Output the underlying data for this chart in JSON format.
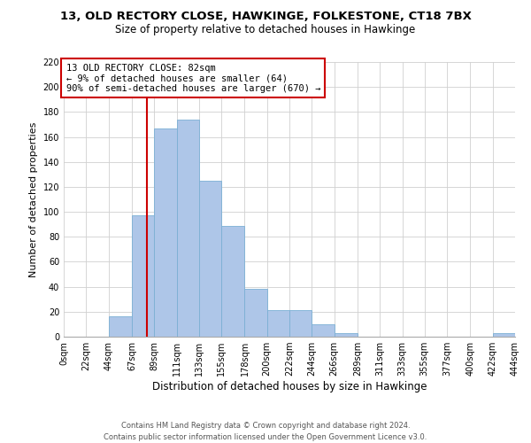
{
  "title": "13, OLD RECTORY CLOSE, HAWKINGE, FOLKESTONE, CT18 7BX",
  "subtitle": "Size of property relative to detached houses in Hawkinge",
  "xlabel": "Distribution of detached houses by size in Hawkinge",
  "ylabel": "Number of detached properties",
  "bar_left_edges": [
    0,
    22,
    44,
    67,
    89,
    111,
    133,
    155,
    178,
    200,
    222,
    244,
    266,
    289,
    311,
    333,
    355,
    377,
    400,
    422
  ],
  "bar_heights": [
    0,
    0,
    16,
    97,
    167,
    174,
    125,
    89,
    38,
    21,
    21,
    10,
    3,
    0,
    0,
    0,
    0,
    0,
    0,
    3
  ],
  "bar_widths": [
    22,
    22,
    23,
    22,
    22,
    22,
    22,
    23,
    22,
    22,
    22,
    22,
    23,
    22,
    22,
    22,
    22,
    23,
    22,
    22
  ],
  "bar_color": "#aec6e8",
  "bar_edge_color": "#7bafd4",
  "property_line_x": 82,
  "vline_color": "#cc0000",
  "ylim": [
    0,
    220
  ],
  "yticks": [
    0,
    20,
    40,
    60,
    80,
    100,
    120,
    140,
    160,
    180,
    200,
    220
  ],
  "xtick_labels": [
    "0sqm",
    "22sqm",
    "44sqm",
    "67sqm",
    "89sqm",
    "111sqm",
    "133sqm",
    "155sqm",
    "178sqm",
    "200sqm",
    "222sqm",
    "244sqm",
    "266sqm",
    "289sqm",
    "311sqm",
    "333sqm",
    "355sqm",
    "377sqm",
    "400sqm",
    "422sqm",
    "444sqm"
  ],
  "xtick_positions": [
    0,
    22,
    44,
    67,
    89,
    111,
    133,
    155,
    178,
    200,
    222,
    244,
    266,
    289,
    311,
    333,
    355,
    377,
    400,
    422,
    444
  ],
  "annotation_title": "13 OLD RECTORY CLOSE: 82sqm",
  "annotation_line1": "← 9% of detached houses are smaller (64)",
  "annotation_line2": "90% of semi-detached houses are larger (670) →",
  "annotation_box_color": "#ffffff",
  "annotation_border_color": "#cc0000",
  "grid_color": "#d0d0d0",
  "background_color": "#ffffff",
  "footer_line1": "Contains HM Land Registry data © Crown copyright and database right 2024.",
  "footer_line2": "Contains public sector information licensed under the Open Government Licence v3.0.",
  "title_fontsize": 9.5,
  "subtitle_fontsize": 8.5,
  "xlabel_fontsize": 8.5,
  "ylabel_fontsize": 8,
  "tick_fontsize": 7,
  "annotation_fontsize": 7.5,
  "footer_fontsize": 6
}
